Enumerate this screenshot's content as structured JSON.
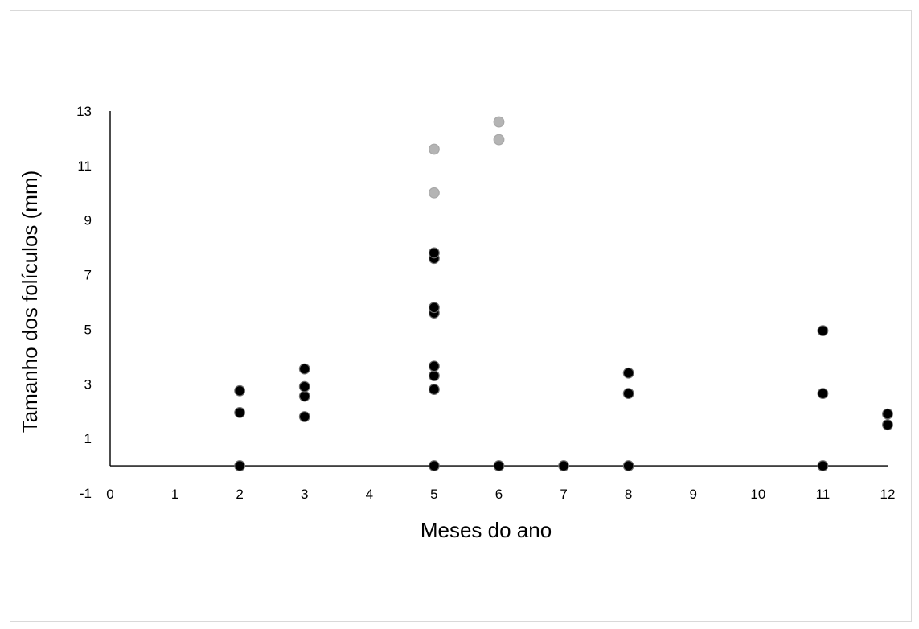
{
  "chart_data": {
    "type": "scatter",
    "title": "",
    "xlabel": "Meses do ano",
    "ylabel": "Tamanho dos folículos  (mm)",
    "xlim": [
      0,
      12
    ],
    "ylim": [
      -1,
      13
    ],
    "x_ticks": [
      "0",
      "1",
      "2",
      "3",
      "4",
      "5",
      "6",
      "7",
      "8",
      "9",
      "10",
      "11",
      "12"
    ],
    "y_ticks": [
      "13",
      "11",
      "9",
      "7",
      "5",
      "3",
      "1",
      "-1"
    ],
    "grid": false,
    "legend": "none",
    "series": [
      {
        "color": "#000000",
        "points": [
          {
            "x": 2,
            "y": 0
          },
          {
            "x": 2,
            "y": 1.95
          },
          {
            "x": 2,
            "y": 2.75
          },
          {
            "x": 3,
            "y": 1.8
          },
          {
            "x": 3,
            "y": 2.55
          },
          {
            "x": 3,
            "y": 2.9
          },
          {
            "x": 3,
            "y": 3.55
          },
          {
            "x": 5,
            "y": 0
          },
          {
            "x": 5,
            "y": 2.8
          },
          {
            "x": 5,
            "y": 3.3
          },
          {
            "x": 5,
            "y": 3.65
          },
          {
            "x": 5,
            "y": 5.6
          },
          {
            "x": 5,
            "y": 5.8
          },
          {
            "x": 5,
            "y": 7.6
          },
          {
            "x": 5,
            "y": 7.8
          },
          {
            "x": 6,
            "y": 0
          },
          {
            "x": 7,
            "y": 0
          },
          {
            "x": 8,
            "y": 0
          },
          {
            "x": 8,
            "y": 2.65
          },
          {
            "x": 8,
            "y": 3.4
          },
          {
            "x": 11,
            "y": 0
          },
          {
            "x": 11,
            "y": 2.65
          },
          {
            "x": 11,
            "y": 4.95
          },
          {
            "x": 12,
            "y": 1.5
          },
          {
            "x": 12,
            "y": 1.9
          }
        ]
      },
      {
        "color": "#b4b4b4",
        "points": [
          {
            "x": 5,
            "y": 10
          },
          {
            "x": 5,
            "y": 11.6
          },
          {
            "x": 6,
            "y": 11.95
          },
          {
            "x": 6,
            "y": 12.6
          }
        ]
      }
    ]
  }
}
